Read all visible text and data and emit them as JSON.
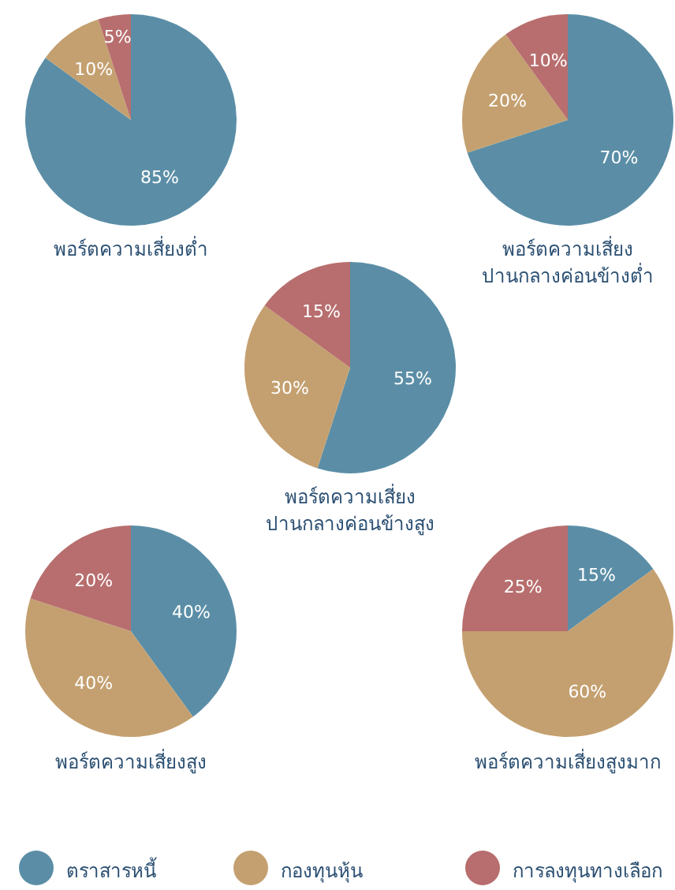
{
  "chart_data": [
    {
      "type": "pie",
      "title": "พอร์ตความเสี่ยงต่ำ",
      "categories": [
        "ตราสารหนี้",
        "กองทุนหุ้น",
        "การลงทุนทางเลือก"
      ],
      "values": [
        85,
        10,
        5
      ],
      "colors": [
        "#5b8ea6",
        "#c4a070",
        "#b86e6e"
      ],
      "value_labels": [
        "85%",
        "10%",
        "5%"
      ],
      "legend": "bottom"
    },
    {
      "type": "pie",
      "title": "พอร์ตความเสี่ยง\nปานกลางค่อนข้างต่ำ",
      "categories": [
        null,
        null,
        null
      ],
      "values": [
        70,
        20,
        10
      ],
      "colors": [
        "#5b8ea6",
        "#c4a070",
        "#b86e6e"
      ],
      "value_labels": [
        "70%",
        "20%",
        "10%"
      ]
    },
    {
      "type": "pie",
      "title": "พอร์ตความเสี่ยง\nปานกลางค่อนข้างสูง",
      "categories": [
        null,
        null,
        null
      ],
      "values": [
        55,
        30,
        15
      ],
      "colors": [
        "#5b8ea6",
        "#c4a070",
        "#b86e6e"
      ],
      "value_labels": [
        "55%",
        "30%",
        "15%"
      ]
    },
    {
      "type": "pie",
      "title": "พอร์ตความเสี่ยงสูง",
      "categories": [
        null,
        null,
        null
      ],
      "values": [
        40,
        40,
        20
      ],
      "colors": [
        "#5b8ea6",
        "#c4a070",
        "#b86e6e"
      ],
      "value_labels": [
        "40%",
        "40%",
        "20%"
      ]
    },
    {
      "type": "pie",
      "title": "พอร์ตความเสี่ยงสูงมาก",
      "categories": [
        null,
        null,
        null
      ],
      "values": [
        15,
        60,
        25
      ],
      "colors": [
        "#5b8ea6",
        "#c4a070",
        "#b86e6e"
      ],
      "value_labels": [
        "15%",
        "60%",
        "25%"
      ]
    }
  ]
}
